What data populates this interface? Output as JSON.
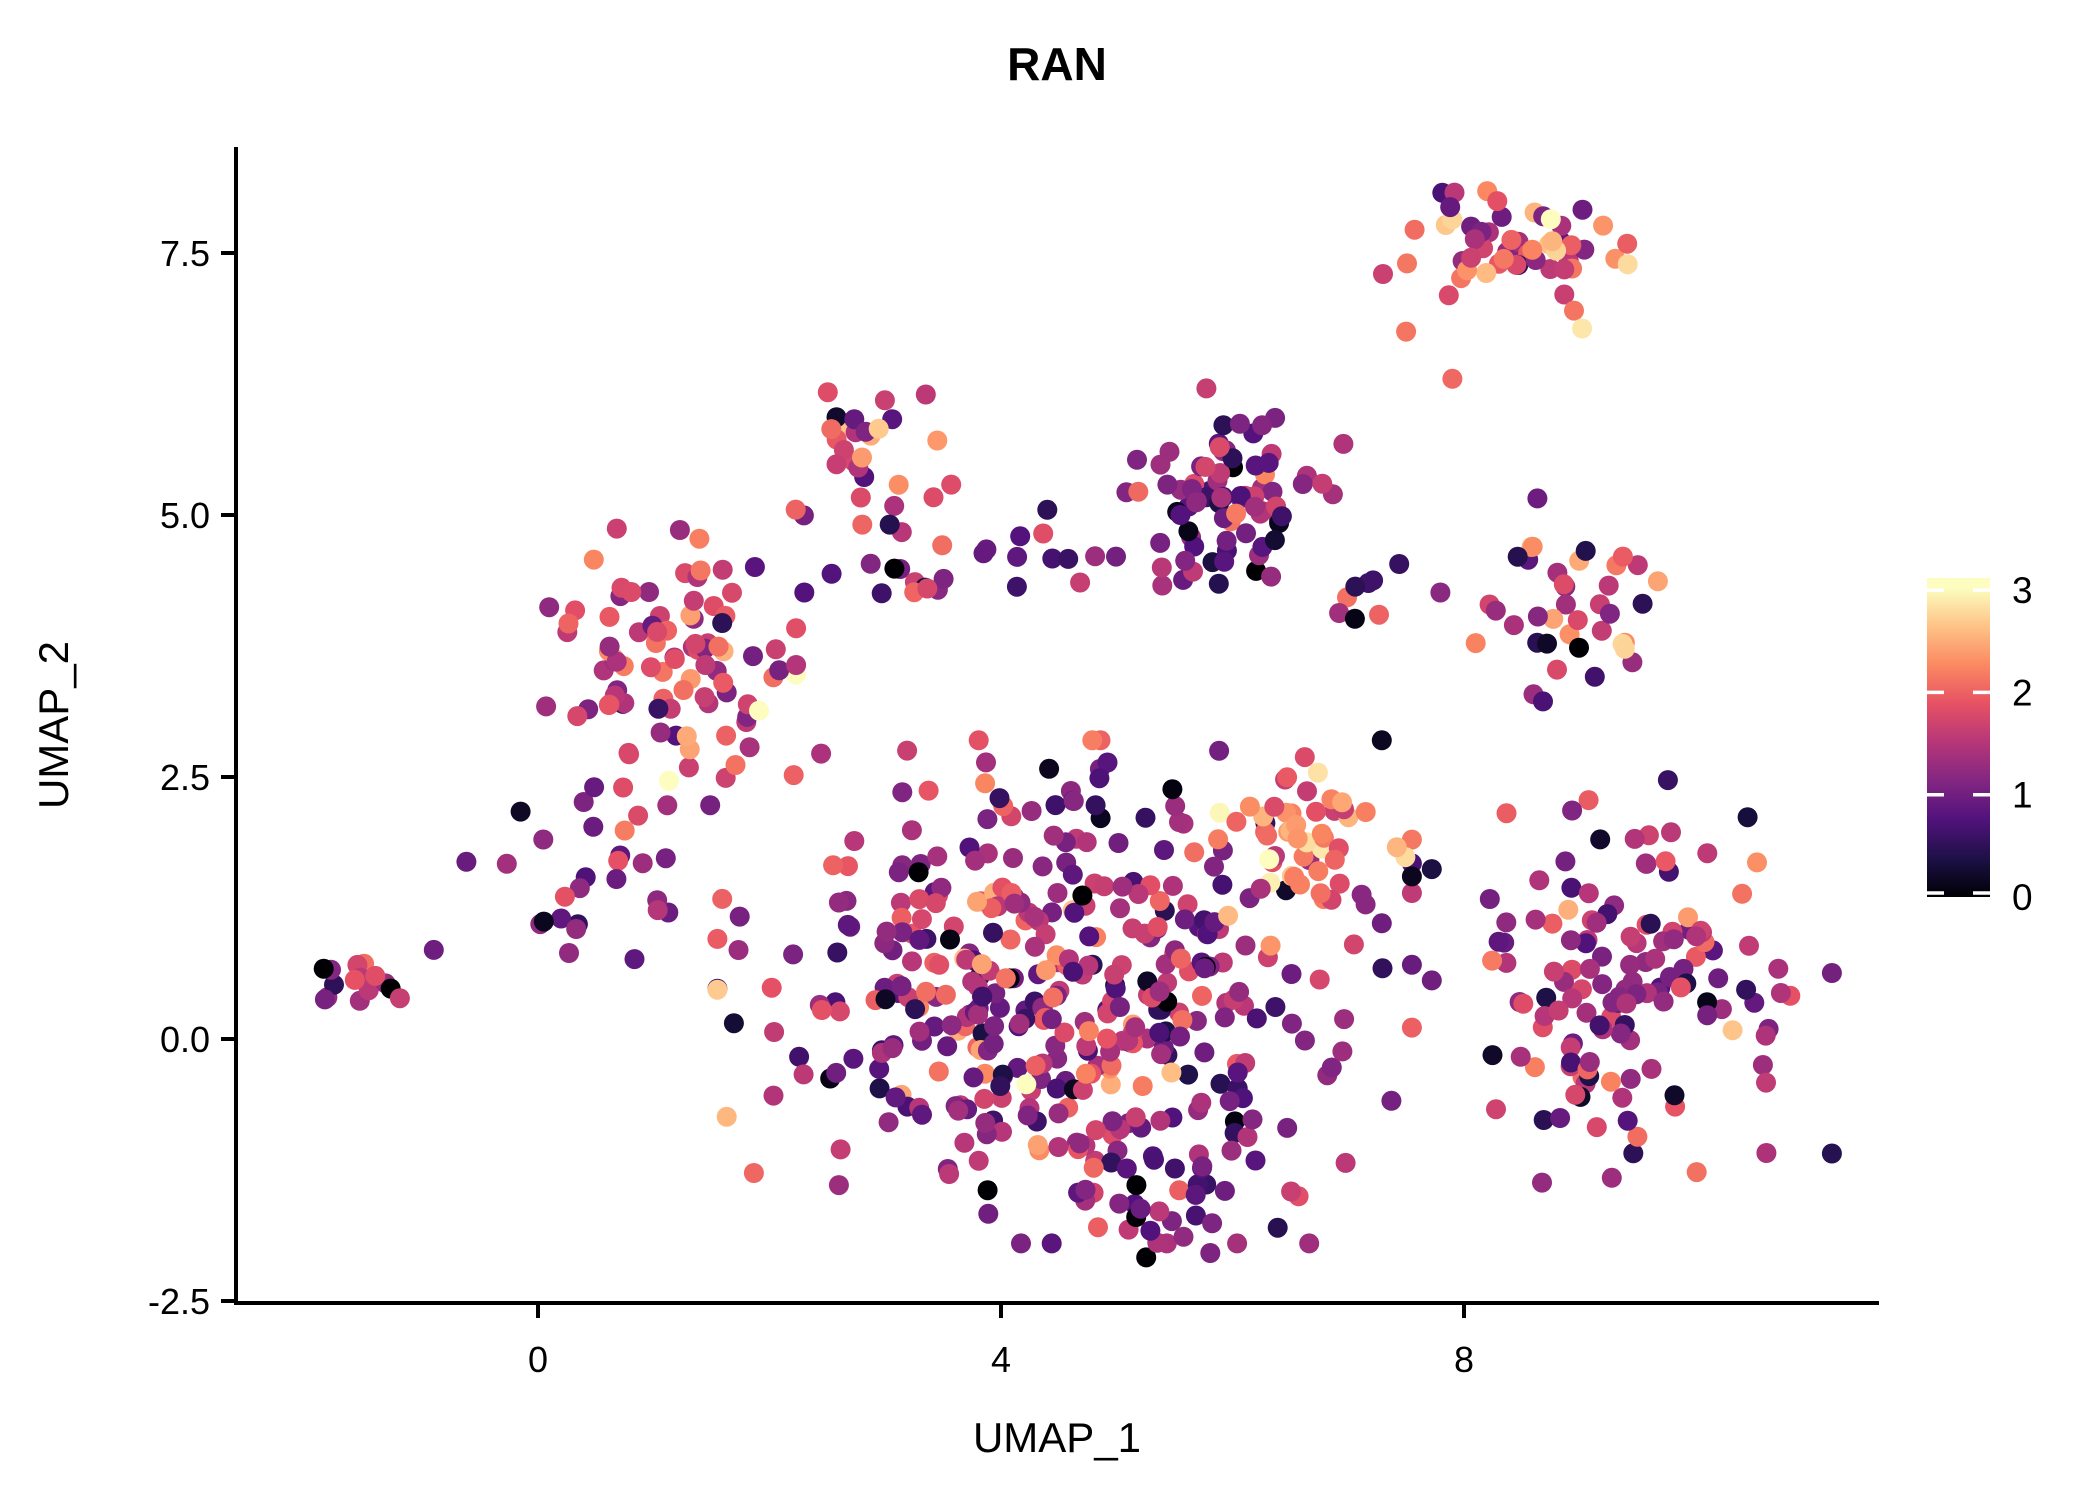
{
  "title": "RAN",
  "axes": {
    "x_label": "UMAP_1",
    "y_label": "UMAP_2",
    "x_tick_labels": [
      "0",
      "4",
      "8"
    ],
    "y_tick_labels": [
      "7.5",
      "5.0",
      "2.5",
      "0.0",
      "-2.5"
    ]
  },
  "colorbar": {
    "tick_labels": [
      "0",
      "1",
      "2",
      "3"
    ],
    "tick_values": [
      0,
      1,
      2,
      3
    ],
    "top_color": "#FCFDBF",
    "bottom_color": "#000004"
  },
  "chart_data": {
    "type": "scatter",
    "title": "RAN",
    "xlabel": "UMAP_1",
    "ylabel": "UMAP_2",
    "xlim": [
      -2.6,
      11.6
    ],
    "ylim": [
      -2.52,
      8.51
    ],
    "x_tick_values": [
      0,
      4,
      8
    ],
    "y_tick_values": [
      7.5,
      5.0,
      2.5,
      0.0,
      -2.5
    ],
    "grid": false,
    "legend_position": "right",
    "point_radius_px": 10,
    "color_scale": {
      "name": "magma",
      "domain": [
        0,
        3.1
      ],
      "anchors": [
        "#000004",
        "#1D1147",
        "#51127C",
        "#822681",
        "#B63679",
        "#E65164",
        "#FB8861",
        "#FEC287",
        "#FCFDBF"
      ]
    },
    "clusters": [
      {
        "name": "top-right",
        "cx": 8.5,
        "cy": 7.6,
        "sx": 0.45,
        "sy": 0.21,
        "n": 52,
        "expr_mean": 1.7,
        "expr_sd": 0.75,
        "seed": 11
      },
      {
        "name": "top-middle",
        "cx": 2.85,
        "cy": 5.6,
        "sx": 0.3,
        "sy": 0.33,
        "n": 27,
        "expr_mean": 1.95,
        "expr_sd": 0.55,
        "seed": 22
      },
      {
        "name": "mid-right",
        "cx": 5.95,
        "cy": 5.2,
        "sx": 0.42,
        "sy": 0.42,
        "n": 80,
        "expr_mean": 1.1,
        "expr_sd": 0.5,
        "seed": 33
      },
      {
        "name": "mid-right-arm",
        "cx": 7.15,
        "cy": 4.2,
        "sx": 0.2,
        "sy": 0.25,
        "n": 8,
        "expr_mean": 1.2,
        "expr_sd": 0.6,
        "seed": 44
      },
      {
        "name": "right-middle",
        "cx": 8.8,
        "cy": 4.15,
        "sx": 0.42,
        "sy": 0.42,
        "n": 40,
        "expr_mean": 1.4,
        "expr_sd": 0.7,
        "seed": 55
      },
      {
        "name": "left",
        "cx": 1.15,
        "cy": 3.55,
        "sx": 0.45,
        "sy": 0.55,
        "n": 95,
        "expr_mean": 1.8,
        "expr_sd": 0.5,
        "seed": 66
      },
      {
        "name": "central-band",
        "cx": 3.8,
        "cy": 4.5,
        "sx": 0.7,
        "sy": 0.17,
        "n": 26,
        "expr_mean": 1.15,
        "expr_sd": 0.55,
        "seed": 77
      },
      {
        "name": "central-main",
        "cx": 4.55,
        "cy": 0.45,
        "sx": 1.25,
        "sy": 1.0,
        "n": 430,
        "expr_mean": 1.35,
        "expr_sd": 0.62,
        "seed": 88
      },
      {
        "name": "high-expr",
        "cx": 6.55,
        "cy": 1.95,
        "sx": 0.4,
        "sy": 0.33,
        "n": 42,
        "expr_mean": 2.35,
        "expr_sd": 0.4,
        "seed": 99
      },
      {
        "name": "far-left",
        "cx": -1.55,
        "cy": 0.62,
        "sx": 0.22,
        "sy": 0.12,
        "n": 15,
        "expr_mean": 1.4,
        "expr_sd": 0.75,
        "seed": 111
      },
      {
        "name": "right-big",
        "cx": 9.45,
        "cy": 0.55,
        "sx": 0.72,
        "sy": 0.8,
        "n": 140,
        "expr_mean": 1.35,
        "expr_sd": 0.6,
        "seed": 122
      },
      {
        "name": "bottom-tail",
        "cx": 5.35,
        "cy": -1.5,
        "sx": 0.38,
        "sy": 0.28,
        "n": 26,
        "expr_mean": 0.95,
        "expr_sd": 0.55,
        "seed": 133
      },
      {
        "name": "west-scatter",
        "cx": 0.55,
        "cy": 1.4,
        "sx": 0.5,
        "sy": 0.42,
        "n": 24,
        "expr_mean": 1.15,
        "expr_sd": 0.6,
        "seed": 144
      }
    ],
    "extra_points": [
      {
        "x": 8.95,
        "y": 6.95,
        "v": 2.2
      },
      {
        "x": 9.02,
        "y": 6.78,
        "v": 2.95
      },
      {
        "x": 7.5,
        "y": 6.75,
        "v": 2.2
      },
      {
        "x": 7.9,
        "y": 6.3,
        "v": 2.1
      },
      {
        "x": 7.3,
        "y": 7.3,
        "v": 1.7
      },
      {
        "x": -0.9,
        "y": 0.85,
        "v": 1.0
      },
      {
        "x": 0.2,
        "y": 1.15,
        "v": 0.9
      },
      {
        "x": 0.05,
        "y": 1.12,
        "v": 0.15
      },
      {
        "x": 0.33,
        "y": 1.05,
        "v": 1.3
      },
      {
        "x": 5.55,
        "y": 5.0,
        "v": 0.8
      },
      {
        "x": 4.4,
        "y": 5.05,
        "v": 0.5
      },
      {
        "x": 3.35,
        "y": 6.15,
        "v": 1.6
      }
    ]
  }
}
